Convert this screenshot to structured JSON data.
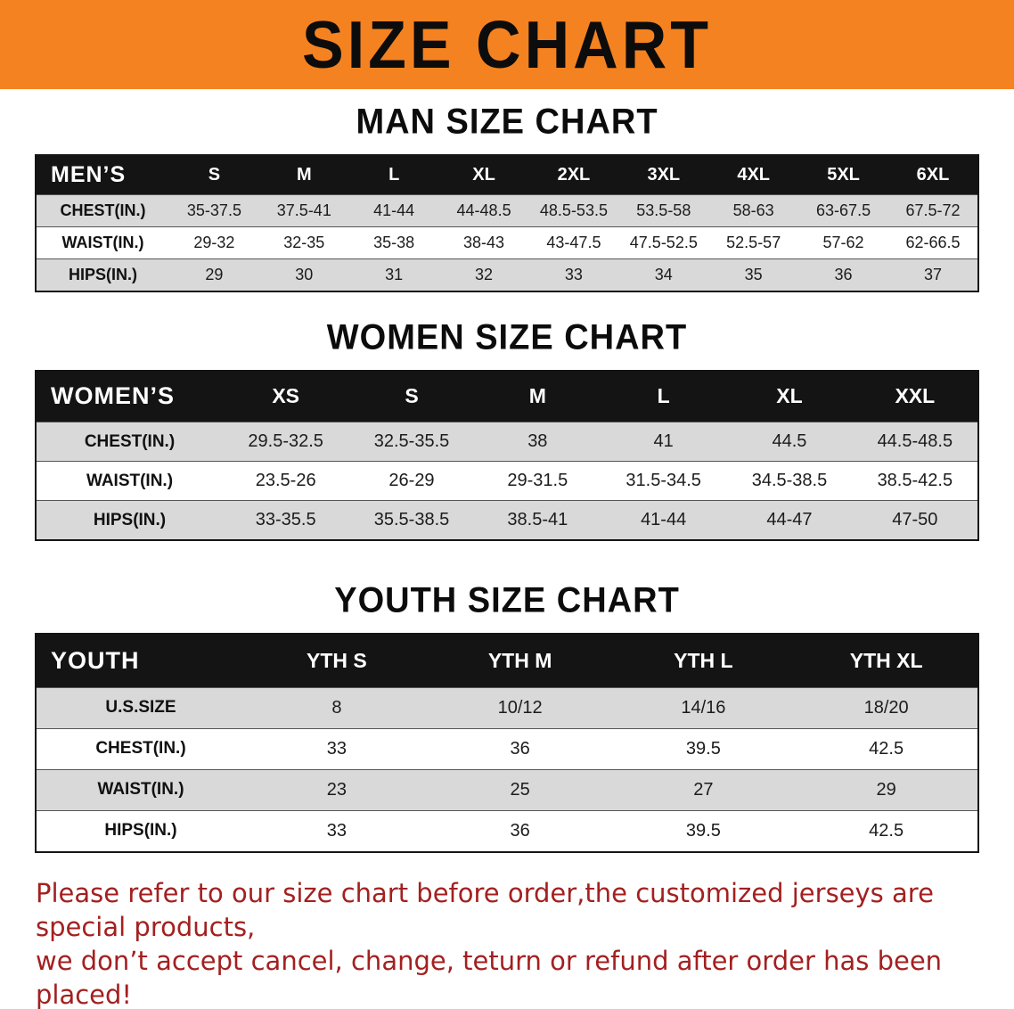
{
  "colors": {
    "banner_bg": "#f58220",
    "table_header_bg": "#141414",
    "row_stripe": "#d9d9d9",
    "disclaimer_red": "#a32020"
  },
  "banner": {
    "title": "SIZE CHART"
  },
  "sections": [
    {
      "heading": "MAN SIZE CHART",
      "table": {
        "header_label": "MEN’S",
        "columns": [
          "S",
          "M",
          "L",
          "XL",
          "2XL",
          "3XL",
          "4XL",
          "5XL",
          "6XL"
        ],
        "rows": [
          {
            "label": "CHEST(IN.)",
            "values": [
              "35-37.5",
              "37.5-41",
              "41-44",
              "44-48.5",
              "48.5-53.5",
              "53.5-58",
              "58-63",
              "63-67.5",
              "67.5-72"
            ]
          },
          {
            "label": "WAIST(IN.)",
            "values": [
              "29-32",
              "32-35",
              "35-38",
              "38-43",
              "43-47.5",
              "47.5-52.5",
              "52.5-57",
              "57-62",
              "62-66.5"
            ]
          },
          {
            "label": "HIPS(IN.)",
            "values": [
              "29",
              "30",
              "31",
              "32",
              "33",
              "34",
              "35",
              "36",
              "37"
            ]
          }
        ]
      }
    },
    {
      "heading": "WOMEN SIZE CHART",
      "table": {
        "header_label": "WOMEN’S",
        "columns": [
          "XS",
          "S",
          "M",
          "L",
          "XL",
          "XXL"
        ],
        "rows": [
          {
            "label": "CHEST(IN.)",
            "values": [
              "29.5-32.5",
              "32.5-35.5",
              "38",
              "41",
              "44.5",
              "44.5-48.5"
            ]
          },
          {
            "label": "WAIST(IN.)",
            "values": [
              "23.5-26",
              "26-29",
              "29-31.5",
              "31.5-34.5",
              "34.5-38.5",
              "38.5-42.5"
            ]
          },
          {
            "label": "HIPS(IN.)",
            "values": [
              "33-35.5",
              "35.5-38.5",
              "38.5-41",
              "41-44",
              "44-47",
              "47-50"
            ]
          }
        ]
      }
    },
    {
      "heading": "YOUTH SIZE CHART",
      "table": {
        "header_label": "YOUTH",
        "columns": [
          "YTH S",
          "YTH M",
          "YTH L",
          "YTH XL"
        ],
        "rows": [
          {
            "label": "U.S.SIZE",
            "values": [
              "8",
              "10/12",
              "14/16",
              "18/20"
            ]
          },
          {
            "label": "CHEST(IN.)",
            "values": [
              "33",
              "36",
              "39.5",
              "42.5"
            ]
          },
          {
            "label": "WAIST(IN.)",
            "values": [
              "23",
              "25",
              "27",
              "29"
            ]
          },
          {
            "label": "HIPS(IN.)",
            "values": [
              "33",
              "36",
              "39.5",
              "42.5"
            ]
          }
        ]
      }
    }
  ],
  "disclaimer": {
    "lines": [
      "Please refer to our size chart before order,the customized jerseys are special products,",
      "we don’t accept cancel, change, teturn or refund after order has been placed!"
    ]
  }
}
